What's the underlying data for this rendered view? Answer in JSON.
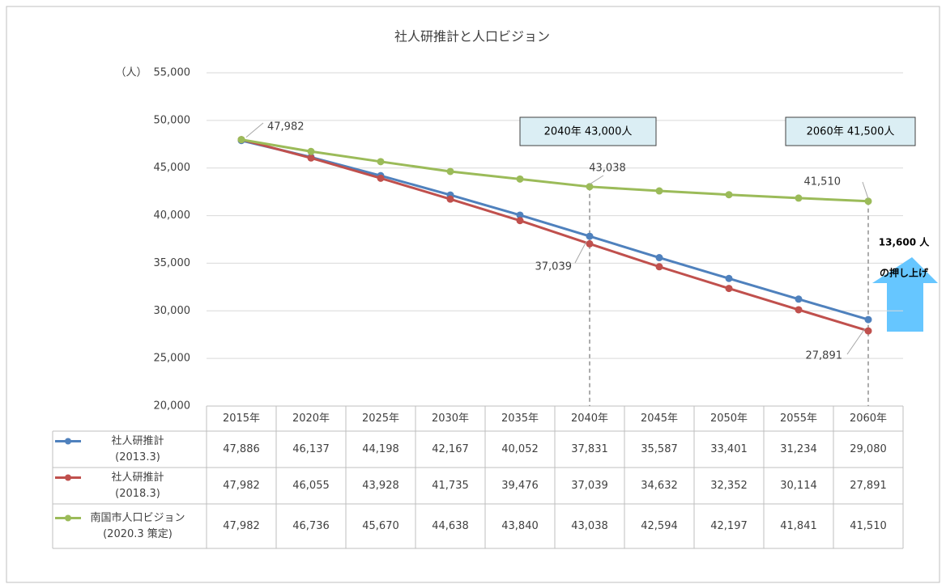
{
  "chart_data": {
    "type": "line",
    "title": "社人研推計と人口ビジョン",
    "y_label": "（人）",
    "categories": [
      "2015年",
      "2020年",
      "2025年",
      "2030年",
      "2035年",
      "2040年",
      "2045年",
      "2050年",
      "2055年",
      "2060年"
    ],
    "series": [
      {
        "name": "社人研推計\n(2013.3)",
        "color": "#4f81bd",
        "values": [
          47886,
          46137,
          44198,
          42167,
          40052,
          37831,
          35587,
          33401,
          31234,
          29080
        ],
        "value_labels": [
          "47,886",
          "46,137",
          "44,198",
          "42,167",
          "40,052",
          "37,831",
          "35,587",
          "33,401",
          "31,234",
          "29,080"
        ]
      },
      {
        "name": "社人研推計\n(2018.3)",
        "color": "#c0504d",
        "values": [
          47982,
          46055,
          43928,
          41735,
          39476,
          37039,
          34632,
          32352,
          30114,
          27891
        ],
        "value_labels": [
          "47,982",
          "46,055",
          "43,928",
          "41,735",
          "39,476",
          "37,039",
          "34,632",
          "32,352",
          "30,114",
          "27,891"
        ]
      },
      {
        "name": "南国市人口ビジョン\n(2020.3 策定)",
        "color": "#9bbb59",
        "values": [
          47982,
          46736,
          45670,
          44638,
          43840,
          43038,
          42594,
          42197,
          41841,
          41510
        ],
        "value_labels": [
          "47,982",
          "46,736",
          "45,670",
          "44,638",
          "43,840",
          "43,038",
          "42,594",
          "42,197",
          "41,841",
          "41,510"
        ]
      }
    ],
    "ylim": [
      20000,
      55000
    ],
    "yticks": [
      {
        "value": 20000,
        "label": "20,000"
      },
      {
        "value": 25000,
        "label": "25,000"
      },
      {
        "value": 30000,
        "label": "30,000"
      },
      {
        "value": 35000,
        "label": "35,000"
      },
      {
        "value": 40000,
        "label": "40,000"
      },
      {
        "value": 45000,
        "label": "45,000"
      },
      {
        "value": 50000,
        "label": "50,000"
      },
      {
        "value": 55000,
        "label": "55,000"
      }
    ],
    "grid": true,
    "annotations": [
      "2040年  43,000人",
      "2060年  41,500人",
      "13,600 人",
      "の押し上げ"
    ]
  }
}
